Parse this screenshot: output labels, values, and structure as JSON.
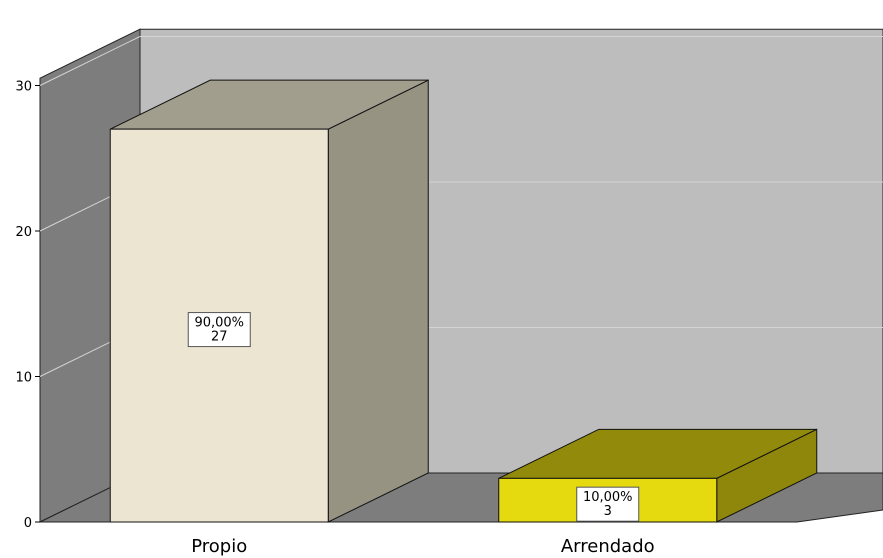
{
  "chart_data": {
    "type": "bar",
    "style": "3d",
    "categories": [
      "Propio",
      "Arrendado"
    ],
    "values": [
      27,
      3
    ],
    "percent_labels": [
      "90,00%",
      "10,00%"
    ],
    "count_labels": [
      "27",
      "3"
    ],
    "ylim": [
      0,
      30
    ],
    "yticks": [
      "0",
      "10",
      "20",
      "30"
    ],
    "grid": true,
    "colors": {
      "bars": [
        {
          "front": "#ebe5d1",
          "side": "#969383",
          "top": "#a29e8d"
        },
        {
          "front": "#e5d90f",
          "side": "#8f870b",
          "top": "#928a0a"
        }
      ],
      "back_wall": "#bdbdbd",
      "side_wall": "#7d7d7d",
      "floor": "#7d7d7d",
      "gridline": "#d4d4d4"
    }
  }
}
